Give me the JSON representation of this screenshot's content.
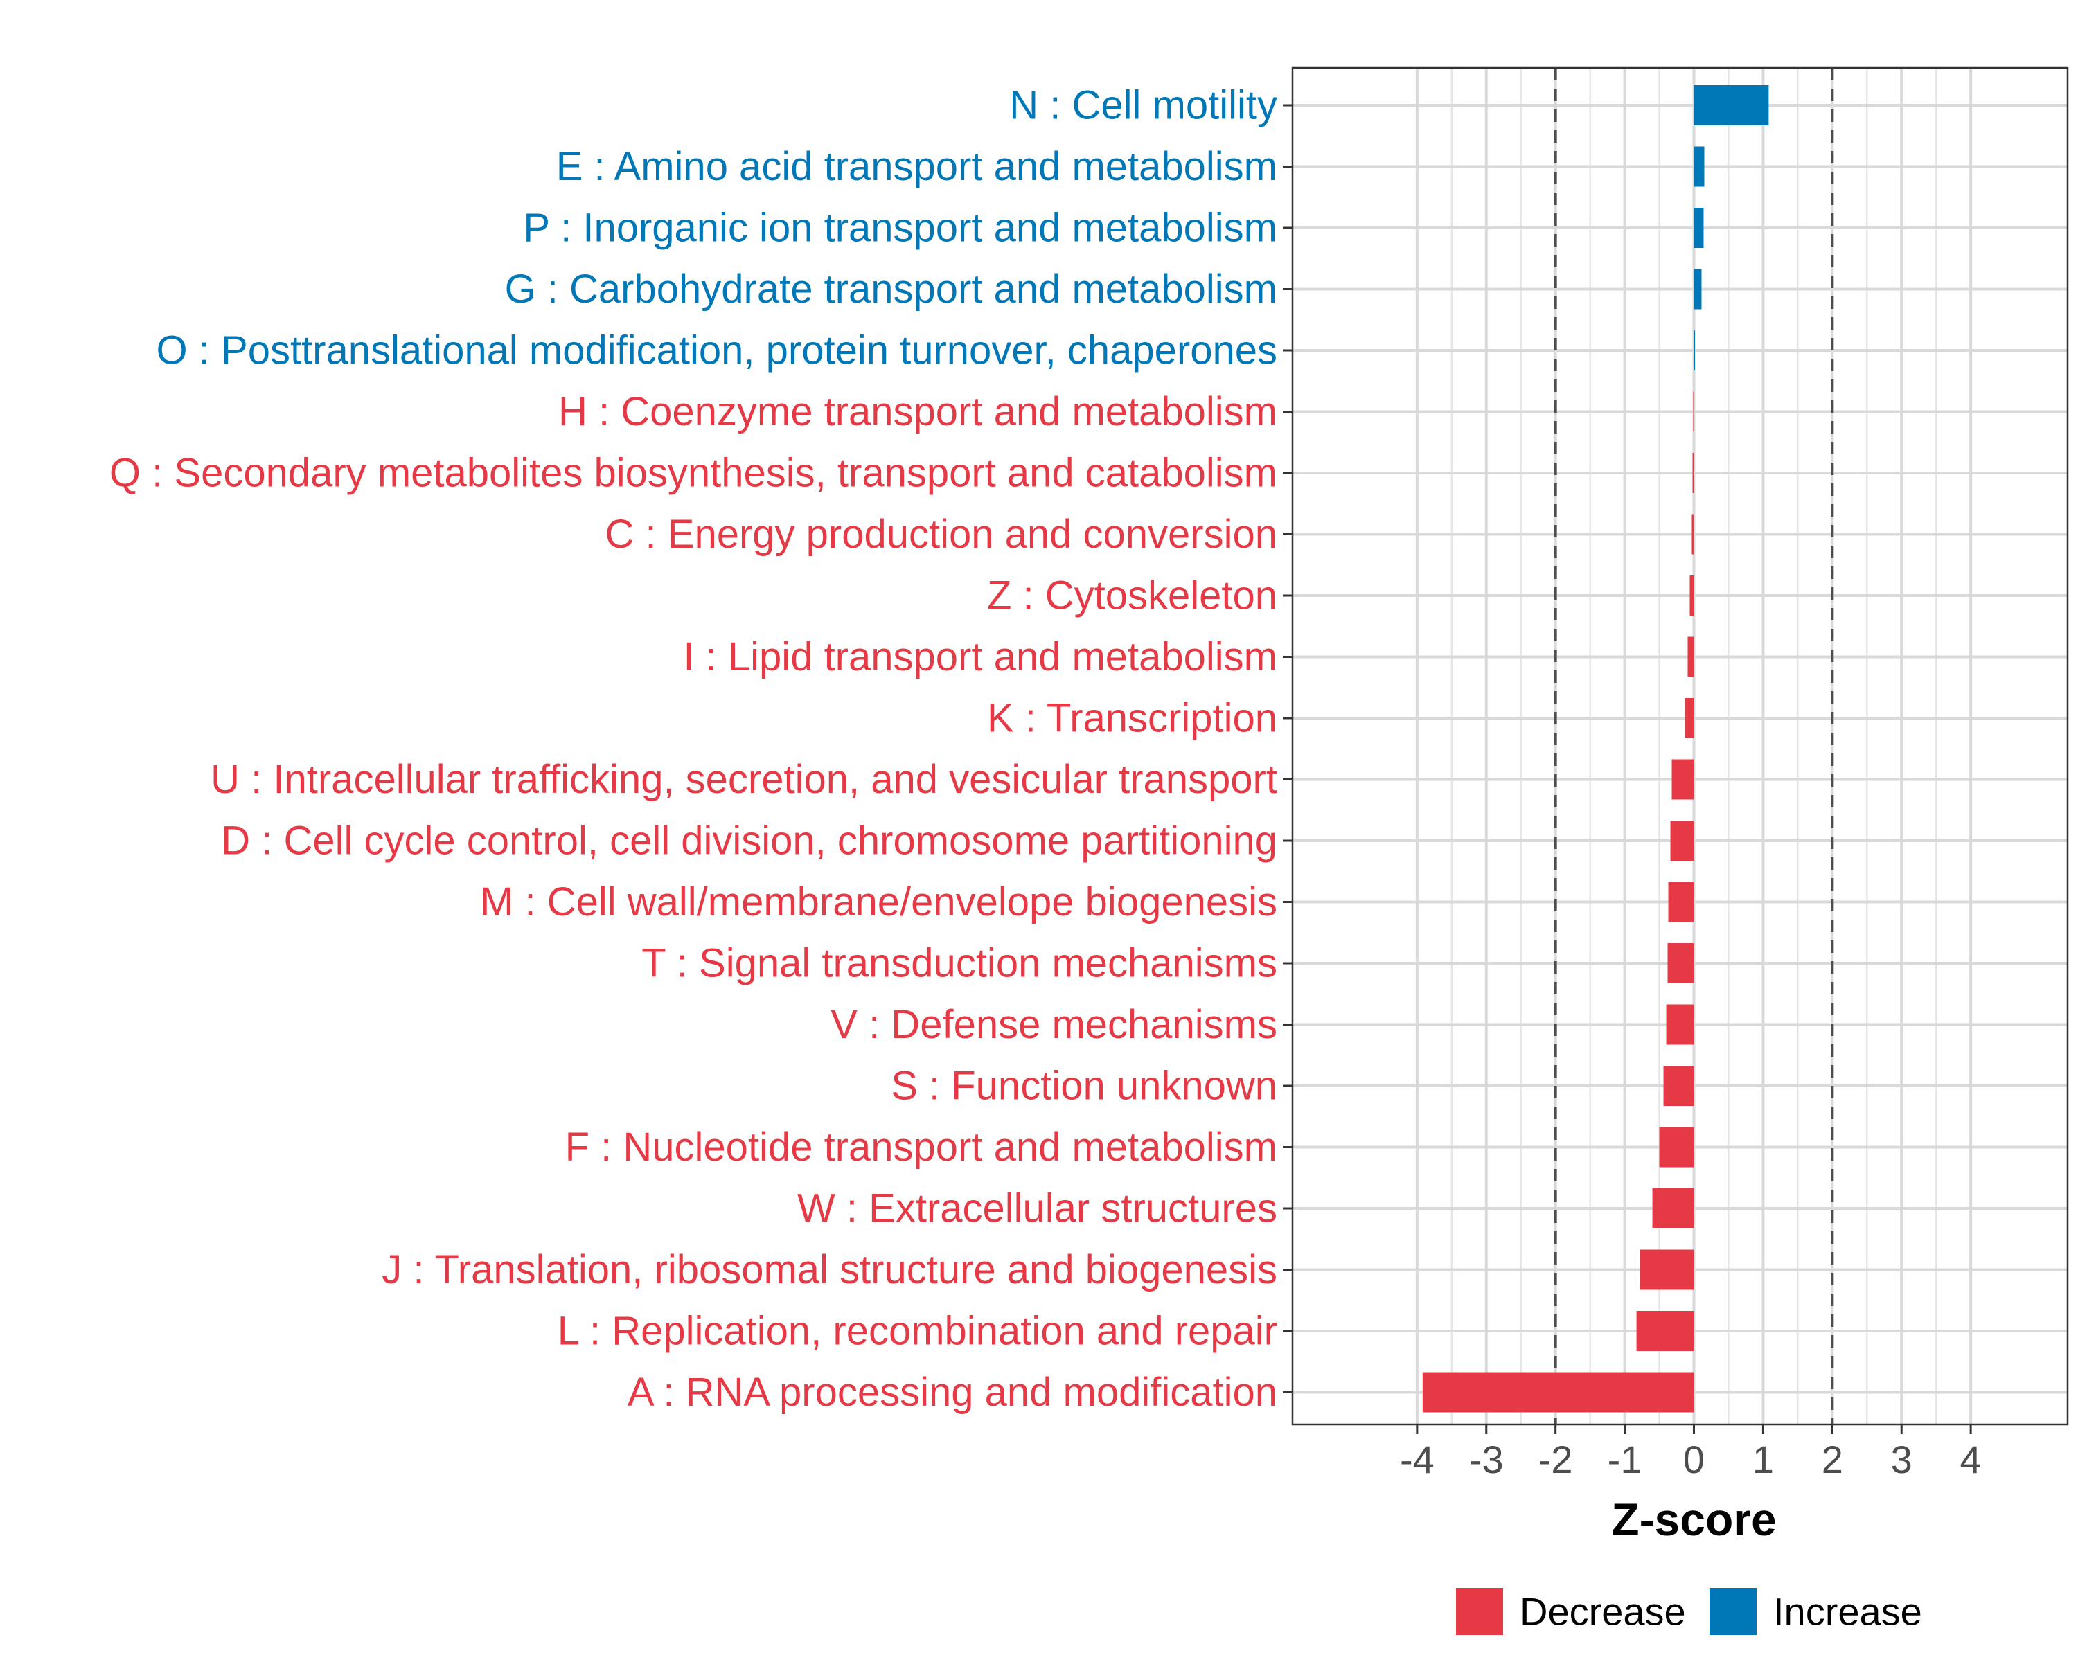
{
  "chart_data": {
    "type": "bar",
    "orientation": "horizontal",
    "title": "",
    "xlabel": "Z-score",
    "ylabel": "",
    "xlim": [
      -5.8,
      5.4
    ],
    "xticks": [
      -4,
      -3,
      -2,
      -1,
      0,
      1,
      2,
      3,
      4
    ],
    "reference_lines": [
      -2,
      2
    ],
    "grid": true,
    "legend_position": "bottom",
    "colors": {
      "Decrease": "#e63946",
      "Increase": "#0077b6"
    },
    "legend": [
      {
        "name": "Decrease",
        "color": "#e63946"
      },
      {
        "name": "Increase",
        "color": "#0077b6"
      }
    ],
    "categories": [
      "N : Cell motility",
      "E : Amino acid transport and metabolism",
      "P : Inorganic ion transport and metabolism",
      "G : Carbohydrate transport and metabolism",
      "O : Posttranslational modification, protein turnover, chaperones",
      "H : Coenzyme transport and metabolism",
      "Q : Secondary metabolites biosynthesis, transport and catabolism",
      "C : Energy production and conversion",
      "Z : Cytoskeleton",
      "I : Lipid transport and metabolism",
      "K : Transcription",
      "U : Intracellular trafficking, secretion, and vesicular transport",
      "D : Cell cycle control, cell division, chromosome partitioning",
      "M : Cell wall/membrane/envelope biogenesis",
      "T : Signal transduction mechanisms",
      "V : Defense mechanisms",
      "S : Function unknown",
      "F : Nucleotide transport and metabolism",
      "W : Extracellular structures",
      "J : Translation, ribosomal structure and biogenesis",
      "L : Replication, recombination and repair",
      "A : RNA processing and modification"
    ],
    "values": [
      1.08,
      0.15,
      0.14,
      0.11,
      0.0,
      -0.01,
      -0.02,
      -0.03,
      -0.06,
      -0.09,
      -0.13,
      -0.32,
      -0.34,
      -0.37,
      -0.38,
      -0.4,
      -0.44,
      -0.5,
      -0.6,
      -0.78,
      -0.83,
      -3.92
    ],
    "groups": [
      "Increase",
      "Increase",
      "Increase",
      "Increase",
      "Increase",
      "Decrease",
      "Decrease",
      "Decrease",
      "Decrease",
      "Decrease",
      "Decrease",
      "Decrease",
      "Decrease",
      "Decrease",
      "Decrease",
      "Decrease",
      "Decrease",
      "Decrease",
      "Decrease",
      "Decrease",
      "Decrease",
      "Decrease"
    ]
  }
}
